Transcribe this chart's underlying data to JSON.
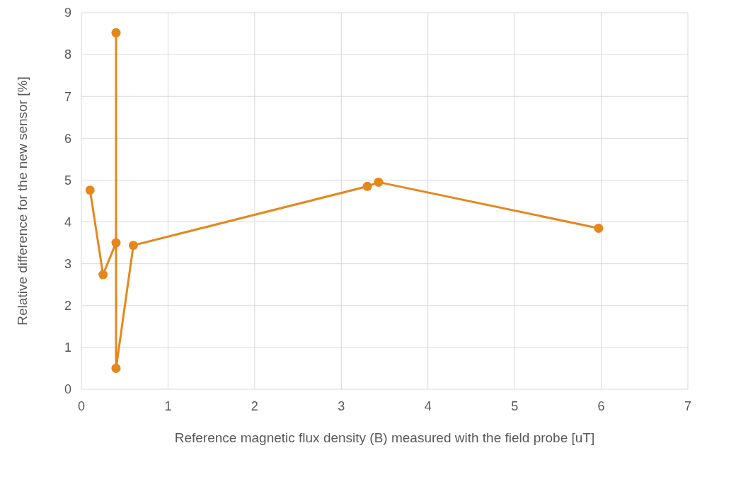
{
  "chart_data": {
    "type": "line",
    "xlabel": "Reference magnetic flux density (B) measured with the field probe [uT]",
    "ylabel": "Relative difference for the new sensor [%]",
    "x": [
      0.1,
      0.25,
      0.4,
      0.4,
      0.4,
      0.6,
      3.3,
      3.43,
      5.97
    ],
    "series": [
      {
        "color": "#e6871c",
        "values": [
          4.76,
          2.74,
          3.5,
          8.52,
          0.5,
          3.44,
          4.85,
          4.95,
          3.85
        ]
      }
    ],
    "xlim": [
      0,
      7
    ],
    "xticks": [
      0,
      1,
      2,
      3,
      4,
      5,
      6,
      7
    ],
    "ylim": [
      0,
      9
    ],
    "yticks": [
      0,
      1,
      2,
      3,
      4,
      5,
      6,
      7,
      8,
      9
    ],
    "grid": true,
    "marker": "circle",
    "line_style": "solid"
  }
}
